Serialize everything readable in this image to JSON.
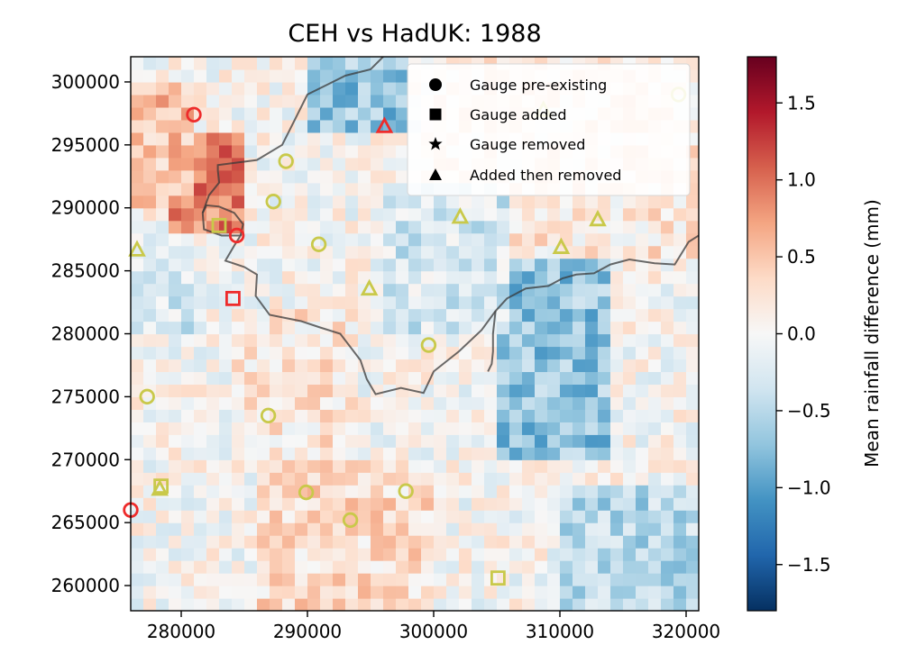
{
  "chart_data": {
    "type": "heatmap",
    "title": "CEH vs HadUK: 1988",
    "xlabel": "",
    "ylabel": "",
    "xlim": [
      276000,
      321000
    ],
    "ylim": [
      258000,
      302000
    ],
    "x_ticks": [
      280000,
      290000,
      300000,
      310000,
      320000
    ],
    "y_ticks": [
      260000,
      265000,
      270000,
      275000,
      280000,
      285000,
      290000,
      295000,
      300000
    ],
    "x_tick_labels": [
      "280000",
      "290000",
      "300000",
      "310000",
      "320000"
    ],
    "y_tick_labels": [
      "260000",
      "265000",
      "270000",
      "275000",
      "280000",
      "285000",
      "290000",
      "295000",
      "300000"
    ],
    "grid": false,
    "colormap": "RdBu_r",
    "colorbar": {
      "label": "Mean rainfall difference (mm)",
      "range": [
        -1.8,
        1.8
      ],
      "ticks": [
        1.5,
        1.0,
        0.5,
        0.0,
        -0.5,
        -1.0,
        -1.5
      ],
      "tick_labels": [
        "1.5",
        "1.0",
        "0.5",
        "0.0",
        "−0.5",
        "−1.0",
        "−1.5"
      ]
    },
    "heatmap_grid": {
      "cell_size": 1000,
      "x_start": 276000,
      "y_start": 258000,
      "cols": 45,
      "rows": 44
    },
    "heatmap_zones": [
      {
        "x": [
          279000,
          285000
        ],
        "y": [
          288000,
          296000
        ],
        "value": 0.9
      },
      {
        "x": [
          276000,
          281000
        ],
        "y": [
          290000,
          300000
        ],
        "value": 0.5
      },
      {
        "x": [
          276000,
          281000
        ],
        "y": [
          280000,
          288000
        ],
        "value": -0.3
      },
      {
        "x": [
          286000,
          300000
        ],
        "y": [
          258000,
          270000
        ],
        "value": 0.3
      },
      {
        "x": [
          284000,
          294000
        ],
        "y": [
          270000,
          282000
        ],
        "value": 0.2
      },
      {
        "x": [
          290000,
          298000
        ],
        "y": [
          296000,
          302000
        ],
        "value": -0.7
      },
      {
        "x": [
          305000,
          314000
        ],
        "y": [
          270000,
          286000
        ],
        "value": -0.7
      },
      {
        "x": [
          310000,
          321000
        ],
        "y": [
          258000,
          268000
        ],
        "value": -0.5
      },
      {
        "x": [
          300000,
          321000
        ],
        "y": [
          286000,
          302000
        ],
        "value": 0.2
      },
      {
        "x": [
          296000,
          306000
        ],
        "y": [
          280000,
          292000
        ],
        "value": -0.3
      }
    ],
    "legend": {
      "placement": "top-right",
      "entries": [
        {
          "label": "Gauge pre-existing",
          "marker": "circle"
        },
        {
          "label": "Gauge added",
          "marker": "square"
        },
        {
          "label": "Gauge removed",
          "marker": "star"
        },
        {
          "label": "Added then removed",
          "marker": "triangle"
        }
      ]
    },
    "marker_colors": {
      "pos": "#ee2b2b",
      "neg": "#c9c94a"
    },
    "gauges": [
      {
        "x": 281000,
        "y": 297400,
        "marker": "circle",
        "color": "pos"
      },
      {
        "x": 284400,
        "y": 287800,
        "marker": "circle",
        "color": "pos"
      },
      {
        "x": 276000,
        "y": 266000,
        "marker": "circle",
        "color": "pos"
      },
      {
        "x": 284100,
        "y": 282800,
        "marker": "square",
        "color": "pos"
      },
      {
        "x": 296100,
        "y": 296500,
        "marker": "triangle",
        "color": "pos"
      },
      {
        "x": 288300,
        "y": 293700,
        "marker": "circle",
        "color": "neg"
      },
      {
        "x": 287300,
        "y": 290500,
        "marker": "circle",
        "color": "neg"
      },
      {
        "x": 290900,
        "y": 287100,
        "marker": "circle",
        "color": "neg"
      },
      {
        "x": 299600,
        "y": 279100,
        "marker": "circle",
        "color": "neg"
      },
      {
        "x": 277300,
        "y": 275000,
        "marker": "circle",
        "color": "neg"
      },
      {
        "x": 286900,
        "y": 273500,
        "marker": "circle",
        "color": "neg"
      },
      {
        "x": 289900,
        "y": 267400,
        "marker": "circle",
        "color": "neg"
      },
      {
        "x": 297800,
        "y": 267500,
        "marker": "circle",
        "color": "neg"
      },
      {
        "x": 293400,
        "y": 265200,
        "marker": "circle",
        "color": "neg"
      },
      {
        "x": 319400,
        "y": 299000,
        "marker": "circle",
        "color": "neg"
      },
      {
        "x": 283000,
        "y": 288600,
        "marker": "square",
        "color": "neg"
      },
      {
        "x": 278400,
        "y": 267900,
        "marker": "square",
        "color": "neg"
      },
      {
        "x": 305100,
        "y": 260600,
        "marker": "square",
        "color": "neg"
      },
      {
        "x": 276500,
        "y": 286700,
        "marker": "triangle",
        "color": "neg"
      },
      {
        "x": 294900,
        "y": 283600,
        "marker": "triangle",
        "color": "neg"
      },
      {
        "x": 302100,
        "y": 289300,
        "marker": "triangle",
        "color": "neg"
      },
      {
        "x": 310100,
        "y": 286900,
        "marker": "triangle",
        "color": "neg"
      },
      {
        "x": 313000,
        "y": 289100,
        "marker": "triangle",
        "color": "neg"
      },
      {
        "x": 278300,
        "y": 267700,
        "marker": "triangle",
        "color": "neg"
      },
      {
        "x": 308700,
        "y": 297800,
        "marker": "triangle",
        "color": "neg"
      }
    ],
    "boundary_lines": [
      [
        [
          296000,
          302000
        ],
        [
          295000,
          301000
        ],
        [
          293000,
          300500
        ],
        [
          292000,
          300000
        ],
        [
          290000,
          299000
        ],
        [
          289000,
          297000
        ],
        [
          288000,
          295000
        ],
        [
          286000,
          293800
        ],
        [
          282900,
          293400
        ],
        [
          282900,
          293000
        ],
        [
          283000,
          292000
        ],
        [
          282200,
          291000
        ],
        [
          281700,
          289600
        ],
        [
          281800,
          288300
        ],
        [
          283200,
          287800
        ],
        [
          284700,
          287800
        ],
        [
          284200,
          287000
        ],
        [
          283500,
          285800
        ],
        [
          285000,
          285300
        ],
        [
          286000,
          284700
        ],
        [
          285900,
          283000
        ],
        [
          287000,
          281500
        ],
        [
          289500,
          281000
        ],
        [
          291000,
          280500
        ],
        [
          292600,
          280000
        ],
        [
          294200,
          277900
        ],
        [
          294700,
          276400
        ],
        [
          295400,
          275200
        ],
        [
          297400,
          275700
        ],
        [
          299200,
          275300
        ],
        [
          300000,
          277000
        ],
        [
          302000,
          278600
        ],
        [
          303800,
          280300
        ],
        [
          304900,
          281800
        ],
        [
          305800,
          282800
        ],
        [
          307300,
          283600
        ],
        [
          309100,
          283800
        ],
        [
          310200,
          284400
        ],
        [
          311300,
          284700
        ],
        [
          312700,
          284800
        ],
        [
          314000,
          285500
        ],
        [
          315500,
          285900
        ],
        [
          317500,
          285600
        ],
        [
          319100,
          285500
        ],
        [
          320200,
          287300
        ],
        [
          321000,
          287800
        ]
      ],
      [
        [
          281700,
          289600
        ],
        [
          282000,
          290200
        ],
        [
          283000,
          290100
        ],
        [
          284200,
          289600
        ],
        [
          284900,
          288700
        ],
        [
          284700,
          287800
        ]
      ],
      [
        [
          304900,
          281800
        ],
        [
          304700,
          280000
        ],
        [
          304700,
          278600
        ],
        [
          304600,
          277600
        ],
        [
          304300,
          277000
        ]
      ]
    ]
  }
}
